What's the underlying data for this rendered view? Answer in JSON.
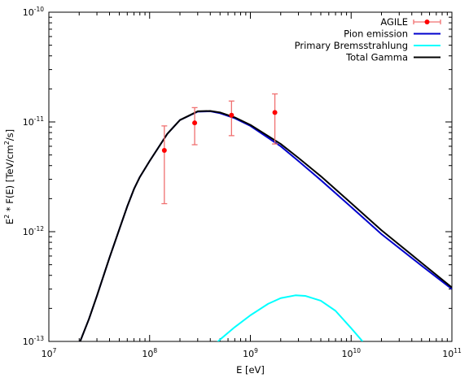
{
  "chart_data": {
    "type": "line",
    "xlabel": "E [eV]",
    "ylabel_parts": [
      "E",
      "2",
      " * F(E) [TeV/cm",
      "2",
      "/s]"
    ],
    "x_scale": "log",
    "y_scale": "log",
    "xlim": [
      10000000.0,
      100000000000.0
    ],
    "ylim": [
      1e-13,
      1e-10
    ],
    "grid": false,
    "legend_position": "top-right",
    "x_ticks": [
      {
        "base": "10",
        "exp": "7",
        "value": 10000000.0
      },
      {
        "base": "10",
        "exp": "8",
        "value": 100000000.0
      },
      {
        "base": "10",
        "exp": "9",
        "value": 1000000000.0
      },
      {
        "base": "10",
        "exp": "10",
        "value": 10000000000.0
      },
      {
        "base": "10",
        "exp": "11",
        "value": 100000000000.0
      }
    ],
    "y_ticks": [
      {
        "base": "10",
        "exp": "-13",
        "value": 1e-13
      },
      {
        "base": "10",
        "exp": "-12",
        "value": 1e-12
      },
      {
        "base": "10",
        "exp": "-11",
        "value": 1e-11
      },
      {
        "base": "10",
        "exp": "-10",
        "value": 1e-10
      }
    ],
    "series": [
      {
        "name": "AGILE",
        "kind": "errorbar",
        "color": "#ff0000",
        "errcolor": "#f07070",
        "points": [
          {
            "x": 140000000.0,
            "y": 5.5e-12,
            "ylow": 1.8e-12,
            "yhigh": 9.2e-12
          },
          {
            "x": 280000000.0,
            "y": 9.8e-12,
            "ylow": 6.2e-12,
            "yhigh": 1.35e-11
          },
          {
            "x": 650000000.0,
            "y": 1.15e-11,
            "ylow": 7.5e-12,
            "yhigh": 1.55e-11
          },
          {
            "x": 1750000000.0,
            "y": 1.22e-11,
            "ylow": 6.3e-12,
            "yhigh": 1.8e-11
          }
        ]
      },
      {
        "name": "Pion emission",
        "kind": "line",
        "color": "#0000cd",
        "x": [
          20000000.0,
          25000000.0,
          30000000.0,
          40000000.0,
          50000000.0,
          60000000.0,
          70000000.0,
          80000000.0,
          100000000.0,
          150000000.0,
          200000000.0,
          300000000.0,
          400000000.0,
          500000000.0,
          700000000.0,
          1000000000.0,
          2000000000.0,
          3000000000.0,
          5000000000.0,
          10000000000.0,
          20000000000.0,
          50000000000.0,
          100000000000.0
        ],
        "y": [
          9.5e-14,
          1.6e-13,
          2.6e-13,
          5.8e-13,
          1.05e-12,
          1.7e-12,
          2.45e-12,
          3.15e-12,
          4.4e-12,
          7.8e-12,
          1.04e-11,
          1.24e-11,
          1.25e-11,
          1.2e-11,
          1.08e-11,
          9.2e-12,
          6e-12,
          4.4e-12,
          2.95e-12,
          1.68e-12,
          9.5e-13,
          4.9e-13,
          3e-13
        ]
      },
      {
        "name": "Primary Bremsstrahlung",
        "kind": "line",
        "color": "#00ffff",
        "x": [
          450000000.0,
          500000000.0,
          700000000.0,
          1000000000.0,
          1500000000.0,
          2000000000.0,
          2800000000.0,
          3500000000.0,
          5000000000.0,
          7000000000.0,
          10000000000.0,
          13000000000.0
        ],
        "y": [
          9.5e-14,
          1.04e-13,
          1.35e-13,
          1.73e-13,
          2.2e-13,
          2.48e-13,
          2.63e-13,
          2.6e-13,
          2.35e-13,
          1.9e-13,
          1.32e-13,
          1e-13
        ]
      },
      {
        "name": "Total Gamma",
        "kind": "line",
        "color": "#000000",
        "x": [
          20000000.0,
          25000000.0,
          30000000.0,
          40000000.0,
          50000000.0,
          60000000.0,
          70000000.0,
          80000000.0,
          100000000.0,
          150000000.0,
          200000000.0,
          300000000.0,
          400000000.0,
          500000000.0,
          700000000.0,
          1000000000.0,
          2000000000.0,
          3000000000.0,
          5000000000.0,
          10000000000.0,
          20000000000.0,
          50000000000.0,
          100000000000.0
        ],
        "y": [
          9.5e-14,
          1.6e-13,
          2.6e-13,
          5.8e-13,
          1.05e-12,
          1.7e-12,
          2.45e-12,
          3.15e-12,
          4.4e-12,
          7.8e-12,
          1.04e-11,
          1.25e-11,
          1.26e-11,
          1.22e-11,
          1.1e-11,
          9.4e-12,
          6.3e-12,
          4.7e-12,
          3.2e-12,
          1.82e-12,
          1.03e-12,
          5.2e-13,
          3.1e-13
        ]
      }
    ]
  }
}
